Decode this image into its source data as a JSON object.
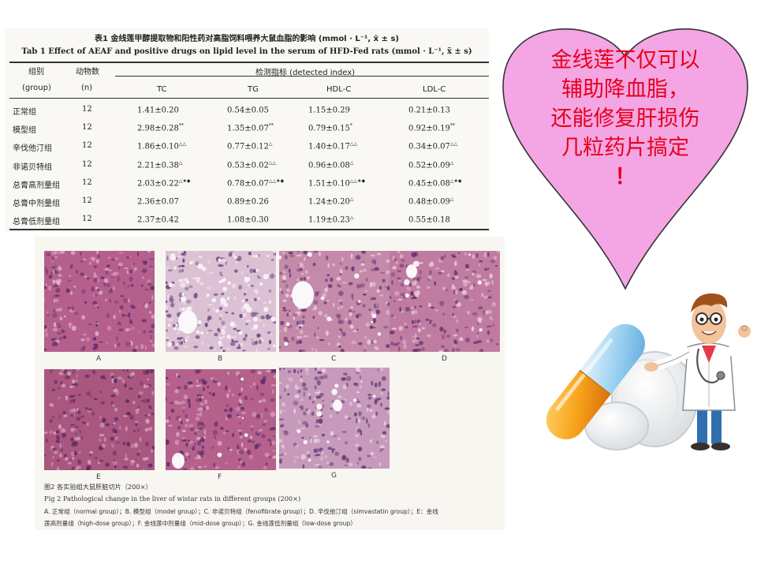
{
  "table": {
    "caption_cn": "表1  金线莲甲醇提取物和阳性药对高脂饲料喂养大鼠血脂的影响 (mmol · L⁻¹, x̄ ± s)",
    "caption_en": "Tab 1  Effect of AEAF and positive drugs on lipid level in the serum of HFD-Fed rats (mmol · L⁻¹, x̄ ± s)",
    "headers": {
      "group_cn": "组别",
      "group_en": "(group)",
      "n_cn": "动物数",
      "n_en": "(n)",
      "index": "检测指标 (detected index)",
      "tc": "TC",
      "tg": "TG",
      "hdl": "HDL-C",
      "ldl": "LDL-C"
    },
    "rows": [
      {
        "group": "正常组",
        "n": "12",
        "tc": "1.41±0.20",
        "tc_sup": "",
        "tg": "0.54±0.05",
        "tg_sup": "",
        "hdl": "1.15±0.29",
        "hdl_sup": "",
        "ldl": "0.21±0.13",
        "ldl_sup": ""
      },
      {
        "group": "模型组",
        "n": "12",
        "tc": "2.98±0.28",
        "tc_sup": "**",
        "tg": "1.35±0.07",
        "tg_sup": "**",
        "hdl": "0.79±0.15",
        "hdl_sup": "*",
        "ldl": "0.92±0.19",
        "ldl_sup": "**"
      },
      {
        "group": "辛伐他汀组",
        "n": "12",
        "tc": "1.86±0.10",
        "tc_sup": "△△",
        "tg": "0.77±0.12",
        "tg_sup": "△",
        "hdl": "1.40±0.17",
        "hdl_sup": "△△",
        "ldl": "0.34±0.07",
        "ldl_sup": "△△"
      },
      {
        "group": "非诺贝特组",
        "n": "12",
        "tc": "2.21±0.38",
        "tc_sup": "△",
        "tg": "0.53±0.02",
        "tg_sup": "△△",
        "hdl": "0.96±0.08",
        "hdl_sup": "△",
        "ldl": "0.52±0.09",
        "ldl_sup": "△"
      },
      {
        "group": "总膏高剂量组",
        "n": "12",
        "tc": "2.03±0.22",
        "tc_sup": "△★◆",
        "tg": "0.78±0.07",
        "tg_sup": "△△★◆",
        "hdl": "1.51±0.10",
        "hdl_sup": "△△★◆",
        "ldl": "0.45±0.08",
        "ldl_sup": "△★◆"
      },
      {
        "group": "总膏中剂量组",
        "n": "12",
        "tc": "2.36±0.07",
        "tc_sup": "",
        "tg": "0.89±0.26",
        "tg_sup": "",
        "hdl": "1.24±0.20",
        "hdl_sup": "△",
        "ldl": "0.48±0.09",
        "ldl_sup": "△"
      },
      {
        "group": "总膏低剂量组",
        "n": "12",
        "tc": "2.37±0.42",
        "tc_sup": "",
        "tg": "1.08±0.30",
        "tg_sup": "",
        "hdl": "1.19±0.23",
        "hdl_sup": "△",
        "ldl": "0.55±0.18",
        "ldl_sup": ""
      }
    ]
  },
  "figure": {
    "panels": [
      "A",
      "B",
      "C",
      "D",
      "E",
      "F",
      "G"
    ],
    "caption_cn": "图2  各实验组大鼠肝脏切片（200×）",
    "caption_en": "Fig 2  Pathological change in the liver of wistar rats in different groups (200×)",
    "legend_line1": "A. 正常组（normal group）；B. 模型组（model group）；C. 非诺贝特组（fenofibrate group）；D. 辛伐他汀组（simvastatin group）；E：金线",
    "legend_line2": "莲高剂量组（high-dose group）；F. 金线莲中剂量组（mid-dose group）；G. 金线莲低剂量组（low-dose group）"
  },
  "callout": {
    "lines": [
      "金线莲不仅可以",
      "辅助降血脂，",
      "还能修复肝损伤",
      "几粒药片搞定",
      "！"
    ],
    "text_color": "#e6001c",
    "fill_color": "#f4a6e4",
    "stroke_color": "#333333"
  },
  "illustration": {
    "subject": "cartoon doctor with stethoscope beside a large capsule and pills"
  }
}
